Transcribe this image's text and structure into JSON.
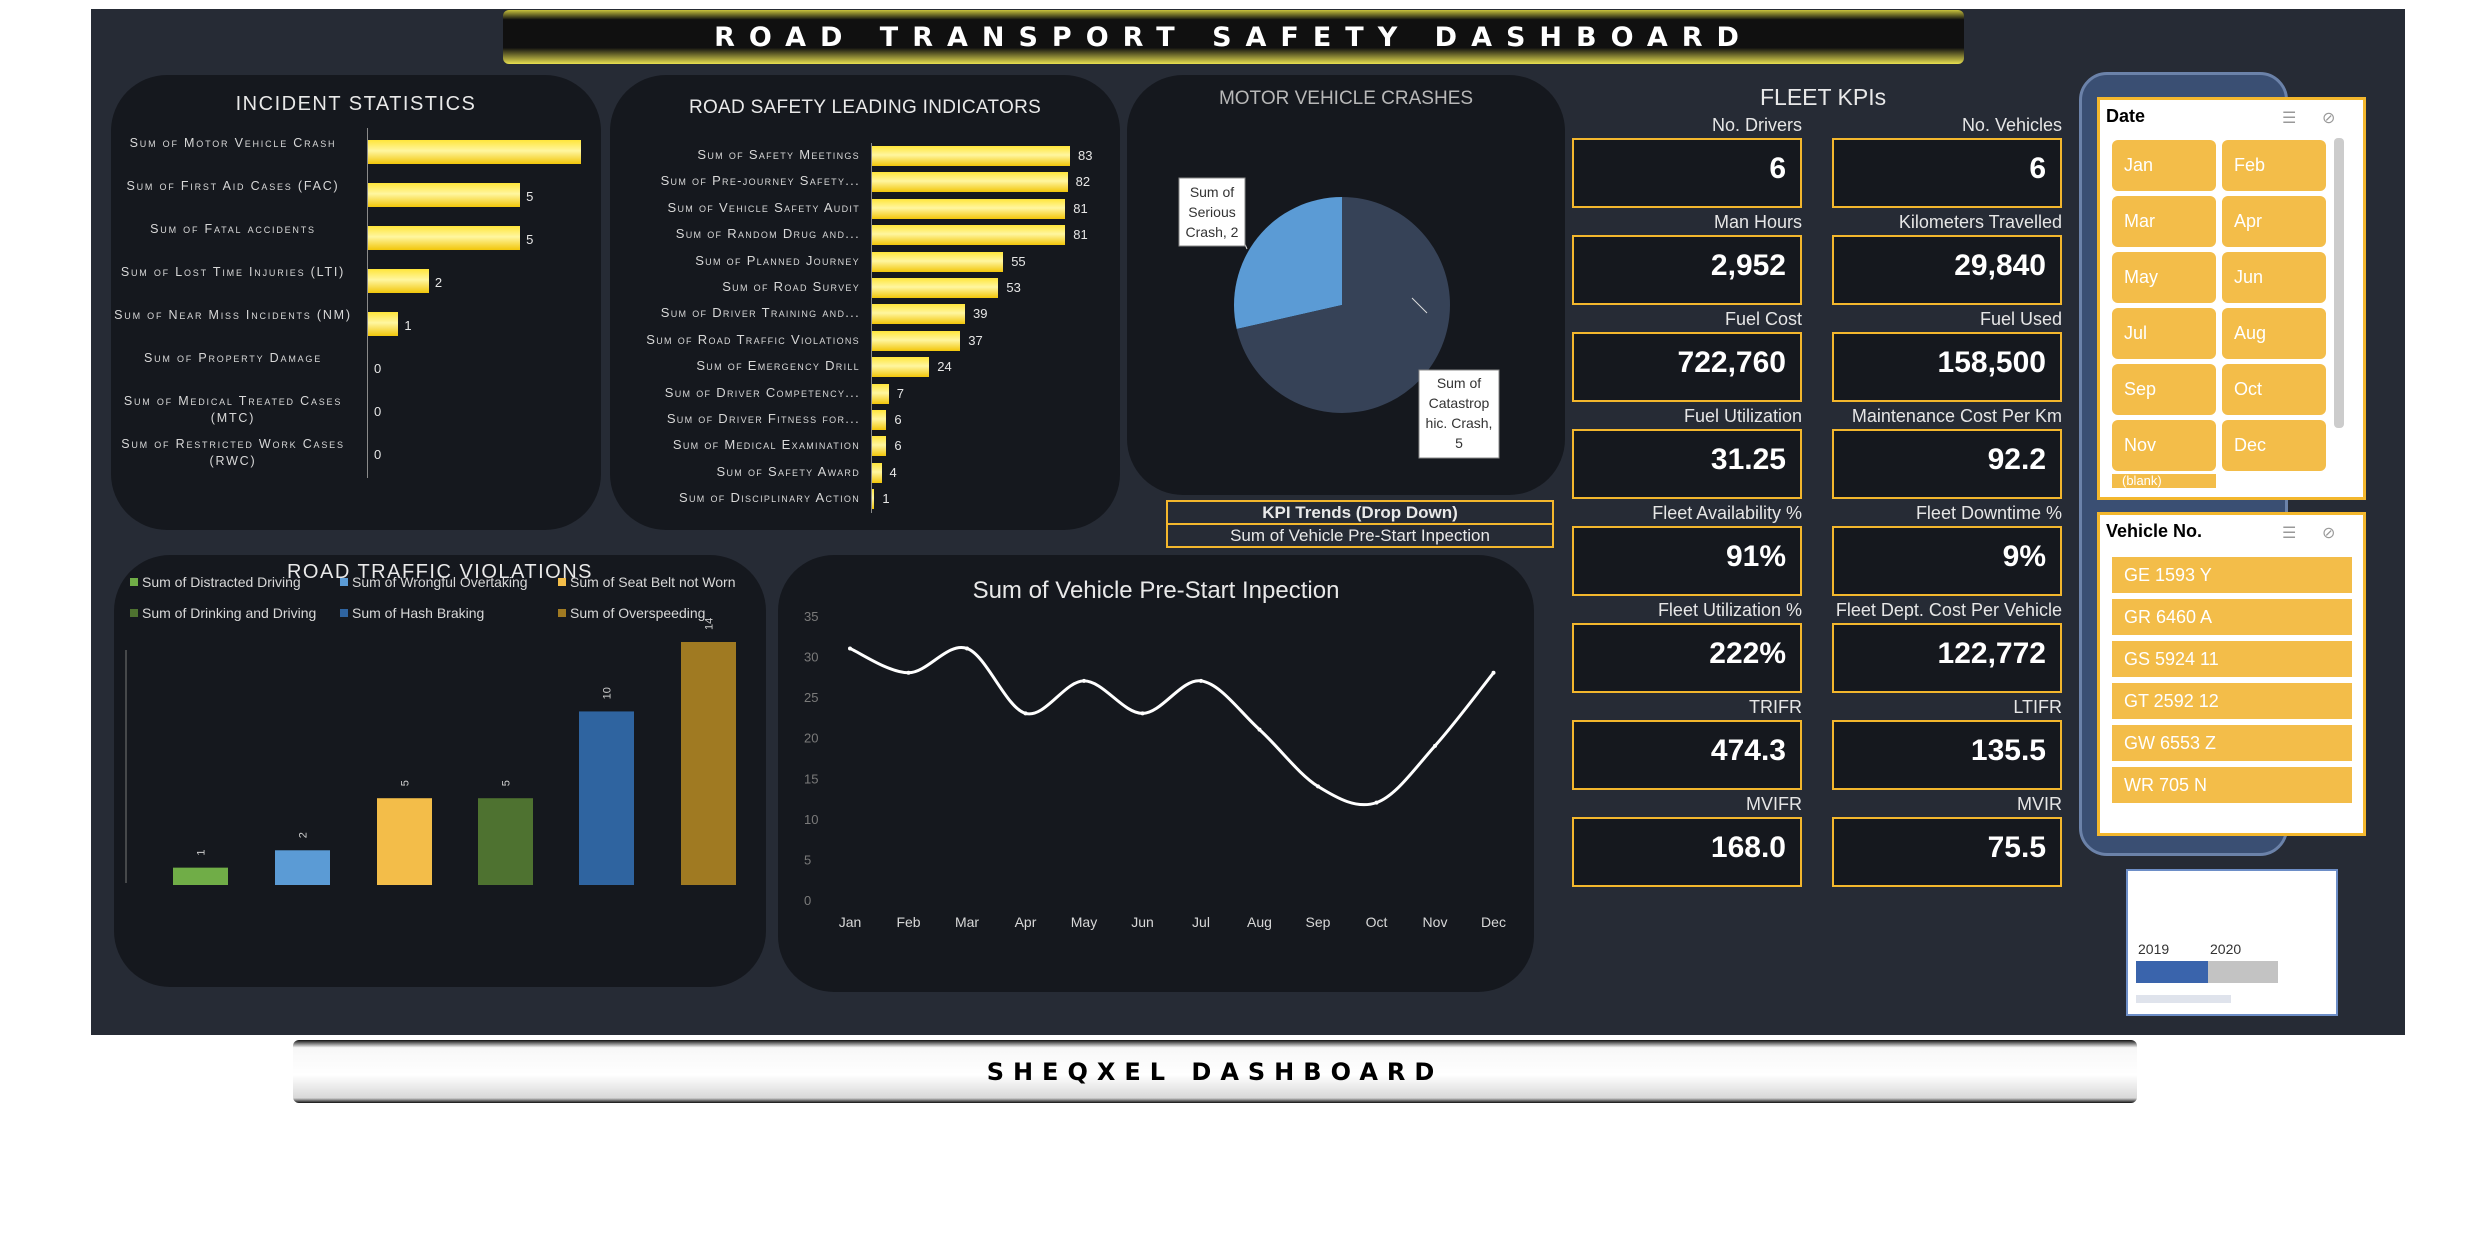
{
  "header": {
    "title": "ROAD TRANSPORT SAFETY DASHBOARD"
  },
  "footer": {
    "title": "SHEQXEL DASHBOARD"
  },
  "incident_statistics": {
    "title": "INCIDENT STATISTICS",
    "labels": [
      "Sum of Motor Vehicle Crash",
      "Sum of First Aid Cases (FAC)",
      "Sum of Fatal accidents",
      "Sum of Lost Time Injuries (LTI)",
      "Sum of Near Miss Incidents (NM)",
      "Sum of Property Damage",
      "Sum of Medical Treated Cases (MTC)",
      "Sum of Restricted Work Cases (RWC)"
    ],
    "values": [
      7,
      5,
      5,
      2,
      1,
      0,
      0,
      0
    ],
    "value_labels": [
      "",
      "5",
      "5",
      "2",
      "1",
      "0",
      "0",
      "0"
    ],
    "bar_color": "#fde74c"
  },
  "leading_indicators": {
    "title": "ROAD SAFETY LEADING INDICATORS",
    "labels": [
      "Sum of Safety Meetings",
      "Sum of Pre-journey Safety...",
      "Sum of Vehicle Safety Audit",
      "Sum of Random Drug and...",
      "Sum of Planned Journey",
      "Sum of Road Survey",
      "Sum of Driver Training and...",
      "Sum of Road Traffic Violations",
      "Sum of Emergency Drill",
      "Sum of Driver Competency...",
      "Sum of Driver Fitness for...",
      "Sum of Medical Examination",
      "Sum of Safety Award",
      "Sum of Disciplinary Action"
    ],
    "values": [
      83,
      82,
      81,
      81,
      55,
      53,
      39,
      37,
      24,
      7,
      6,
      6,
      4,
      1
    ],
    "value_labels": [
      "83",
      "82",
      "81",
      "81",
      "55",
      "53",
      "39",
      "37",
      "24",
      "7",
      "6",
      "6",
      "4",
      "1"
    ]
  },
  "crashes": {
    "title": "MOTOR VEHICLE CRASHES",
    "chart_data": {
      "type": "pie",
      "slices": [
        {
          "name": "Sum of Serious Crash",
          "value": 2,
          "color": "#5b9bd5"
        },
        {
          "name": "Sum of Catastrophic Crash",
          "value": 5,
          "color": "#364257"
        }
      ]
    },
    "callout_serious": [
      "Sum of",
      "Serious",
      "Crash, 2"
    ],
    "callout_catastrophic": [
      "Sum of",
      "Catastrop",
      "hic. Crash,",
      "5"
    ]
  },
  "kpi_dropdown": {
    "title": "KPI Trends (Drop Down)",
    "selected": "Sum of Vehicle Pre-Start Inpection"
  },
  "fleet": {
    "title": "FLEET KPIs",
    "kpis": [
      {
        "label": "No. Drivers",
        "value": "6"
      },
      {
        "label": "No. Vehicles",
        "value": "6"
      },
      {
        "label": "Man Hours",
        "value": "2,952"
      },
      {
        "label": "Kilometers Travelled",
        "value": "29,840"
      },
      {
        "label": "Fuel Cost",
        "value": "722,760"
      },
      {
        "label": "Fuel Used",
        "value": "158,500"
      },
      {
        "label": "Fuel Utilization",
        "value": "31.25"
      },
      {
        "label": "Maintenance Cost Per Km",
        "value": "92.2"
      },
      {
        "label": "Fleet Availability %",
        "value": "91%"
      },
      {
        "label": "Fleet Downtime %",
        "value": "9%"
      },
      {
        "label": "Fleet Utilization %",
        "value": "222%"
      },
      {
        "label": "Fleet Dept. Cost Per Vehicle",
        "value": "122,772"
      },
      {
        "label": "TRIFR",
        "value": "474.3"
      },
      {
        "label": "LTIFR",
        "value": "135.5"
      },
      {
        "label": "MVIFR",
        "value": "168.0"
      },
      {
        "label": "MVIR",
        "value": "75.5"
      }
    ]
  },
  "violations": {
    "title": "ROAD TRAFFIC VIOLATIONS",
    "chart_data": {
      "type": "bar",
      "series": [
        {
          "name": "Sum of Distracted Driving",
          "value": 1,
          "color": "#70ad47"
        },
        {
          "name": "Sum of Wrongful Overtaking",
          "value": 2,
          "color": "#5b9bd5"
        },
        {
          "name": "Sum of Seat Belt not Worn",
          "value": 5,
          "color": "#f3bd49"
        },
        {
          "name": "Sum of Drinking and Driving",
          "value": 5,
          "color": "#4e7230"
        },
        {
          "name": "Sum of Hash Braking",
          "value": 10,
          "color": "#2f64a0"
        },
        {
          "name": "Sum of Overspeeding",
          "value": 14,
          "color": "#a07a22"
        }
      ],
      "value_labels": [
        "1",
        "2",
        "5",
        "5",
        "10",
        "14"
      ]
    }
  },
  "trend": {
    "title": "Sum of Vehicle Pre-Start Inpection",
    "chart_data": {
      "type": "line",
      "x": [
        "Jan",
        "Feb",
        "Mar",
        "Apr",
        "May",
        "Jun",
        "Jul",
        "Aug",
        "Sep",
        "Oct",
        "Nov",
        "Dec"
      ],
      "values": [
        31,
        28,
        31,
        23,
        27,
        23,
        27,
        21,
        14,
        12,
        19,
        28
      ],
      "yticks": [
        "35",
        "30",
        "25",
        "20",
        "15",
        "10",
        "5",
        "0"
      ],
      "ylim": [
        0,
        35
      ]
    }
  },
  "date_slicer": {
    "title": "Date",
    "months": [
      "Jan",
      "Feb",
      "Mar",
      "Apr",
      "May",
      "Jun",
      "Jul",
      "Aug",
      "Sep",
      "Oct",
      "Nov",
      "Dec"
    ],
    "extra": "(blank)"
  },
  "vehicle_slicer": {
    "title": "Vehicle No.",
    "items": [
      "GE 1593 Y",
      "GR 6460 A",
      "GS 5924 11",
      "GT 2592 12",
      "GW 6553 Z",
      "WR 705 N"
    ]
  },
  "timeline": {
    "years": [
      "2019",
      "2020"
    ]
  }
}
